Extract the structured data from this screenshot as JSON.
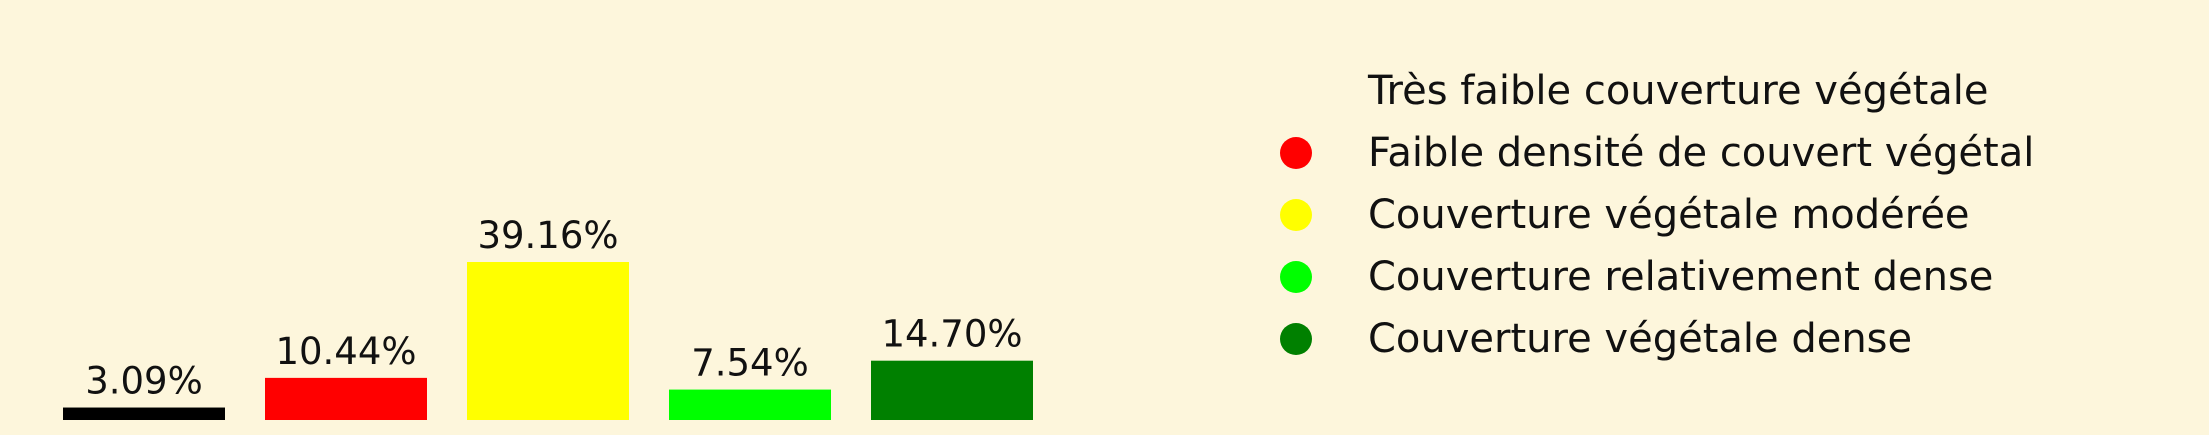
{
  "chart_data": {
    "type": "bar",
    "categories": [
      "Très faible couverture végétale",
      "Faible densité de couvert végétal",
      "Couverture végétale modérée",
      "Couverture relativement dense",
      "Couverture végétale dense"
    ],
    "values": [
      3.09,
      10.44,
      39.16,
      7.54,
      14.7
    ],
    "value_labels": [
      "3.09%",
      "10.44%",
      "39.16%",
      "7.54%",
      "14.70%"
    ],
    "colors": [
      "#000000",
      "#ff0000",
      "#ffff00",
      "#00ff00",
      "#008000"
    ],
    "legend_marker_colors": [
      "",
      "#ff0000",
      "#ffff00",
      "#00ff00",
      "#008000"
    ],
    "legend_position": "right",
    "ylim": [
      0,
      39.16
    ],
    "grid": false,
    "background": "#fdf6dc"
  }
}
